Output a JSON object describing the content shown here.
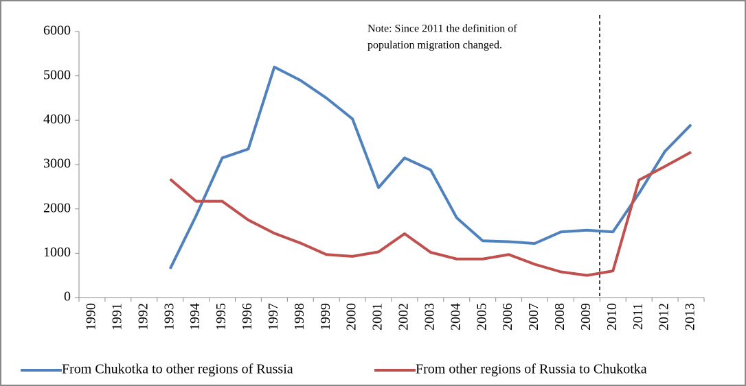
{
  "chart_data": {
    "type": "line",
    "annotation": [
      "Note: Since 2011 the definition of",
      "population migration changed."
    ],
    "categories": [
      "1990",
      "1991",
      "1992",
      "1993",
      "1994",
      "1995",
      "1996",
      "1997",
      "1998",
      "1999",
      "2000",
      "2001",
      "2002",
      "2003",
      "2004",
      "2005",
      "2006",
      "2007",
      "2008",
      "2009",
      "2010",
      "2011",
      "2012",
      "2013"
    ],
    "series": [
      {
        "name": "From Chukotka to other regions of Russia",
        "color": "#4f81bd",
        "values": [
          null,
          null,
          null,
          650,
          1850,
          3150,
          3350,
          5200,
          4900,
          4500,
          4030,
          2480,
          3150,
          2880,
          1800,
          1280,
          1260,
          1220,
          1480,
          1520,
          1480,
          2350,
          3300,
          3900
        ]
      },
      {
        "name": "From other regions of Russia to Chukotka",
        "color": "#c0504d",
        "values": [
          null,
          null,
          null,
          2670,
          2170,
          2170,
          1750,
          1450,
          1230,
          970,
          930,
          1030,
          1440,
          1020,
          870,
          870,
          970,
          750,
          580,
          500,
          600,
          2650,
          2960,
          3280
        ]
      }
    ],
    "ylim": [
      0,
      6000
    ],
    "yticks": [
      0,
      1000,
      2000,
      3000,
      4000,
      5000,
      6000
    ],
    "grid": false
  }
}
